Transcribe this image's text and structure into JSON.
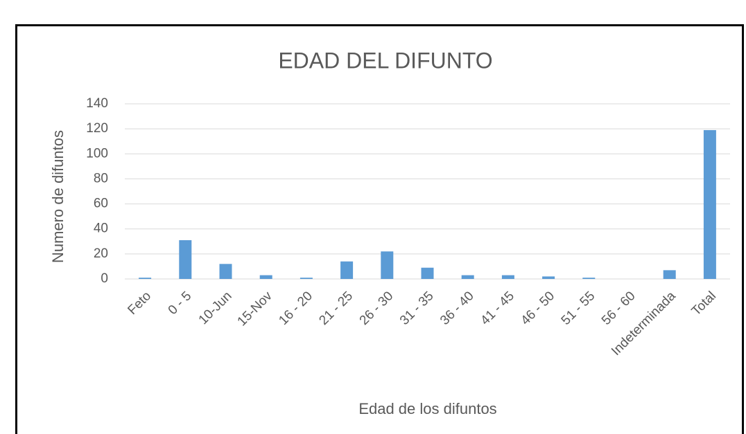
{
  "chart_data": {
    "type": "bar",
    "title": "EDAD DEL DIFUNTO",
    "x_label": "Edad de los difuntos",
    "y_label": "Numero de difuntos",
    "categories": [
      "Feto",
      "0 - 5",
      "10-Jun",
      "15-Nov",
      "16 - 20",
      "21 - 25",
      "26 - 30",
      "31 - 35",
      "36 - 40",
      "41 - 45",
      "46 - 50",
      "51 - 55",
      "56 - 60",
      "Indeterminada",
      "Total"
    ],
    "values": [
      1,
      31,
      12,
      3,
      1,
      14,
      22,
      9,
      3,
      3,
      2,
      1,
      0,
      7,
      119
    ],
    "color": "#5b9bd5",
    "ylim": [
      0,
      140
    ],
    "yticks": [
      0,
      20,
      40,
      60,
      80,
      100,
      120,
      140
    ],
    "grid": true
  }
}
